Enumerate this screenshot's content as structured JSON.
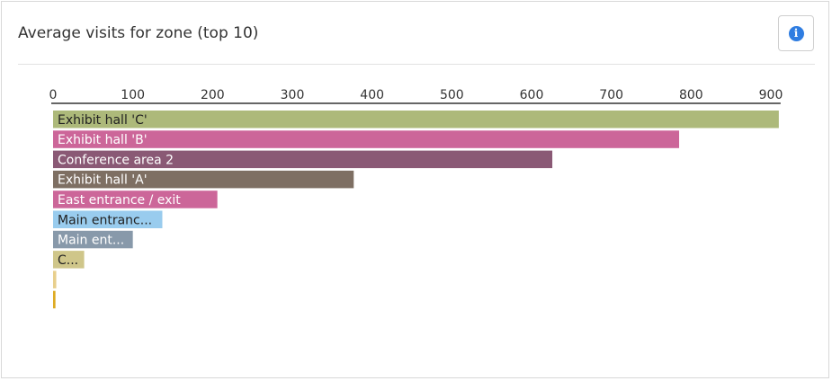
{
  "header": {
    "title": "Average visits for zone (top 10)",
    "info_icon": "info-icon",
    "info_color": "#2f7de1"
  },
  "chart_data": {
    "type": "bar",
    "orientation": "horizontal",
    "title": "Average visits for zone (top 10)",
    "xlabel": "",
    "ylabel": "",
    "xlim": [
      0,
      900
    ],
    "ticks": [
      0,
      100,
      200,
      300,
      400,
      500,
      600,
      700,
      800,
      900
    ],
    "grid": false,
    "bars": [
      {
        "label": "Exhibit hall 'C'",
        "value": 910,
        "color": "#adb97a",
        "text_color": "#222222"
      },
      {
        "label": "Exhibit hall 'B'",
        "value": 785,
        "color": "#cc6699",
        "text_color": "#ffffff"
      },
      {
        "label": "Conference area 2",
        "value": 626,
        "color": "#8a5975",
        "text_color": "#ffffff"
      },
      {
        "label": "Exhibit hall 'A'",
        "value": 377,
        "color": "#7e6f63",
        "text_color": "#ffffff"
      },
      {
        "label": "East entrance / exit",
        "value": 206,
        "color": "#cc6699",
        "text_color": "#ffffff"
      },
      {
        "label": "Main entranc...",
        "value": 137,
        "color": "#99ccee",
        "text_color": "#222222"
      },
      {
        "label": "Main ent...",
        "value": 100,
        "color": "#8899aa",
        "text_color": "#ffffff"
      },
      {
        "label": "C...",
        "value": 39,
        "color": "#cfc68a",
        "text_color": "#222222"
      },
      {
        "label": "",
        "value": 4,
        "color": "#e8cf8c",
        "text_color": "#222222"
      },
      {
        "label": "",
        "value": 3,
        "color": "#ddaa22",
        "text_color": "#222222"
      }
    ]
  }
}
